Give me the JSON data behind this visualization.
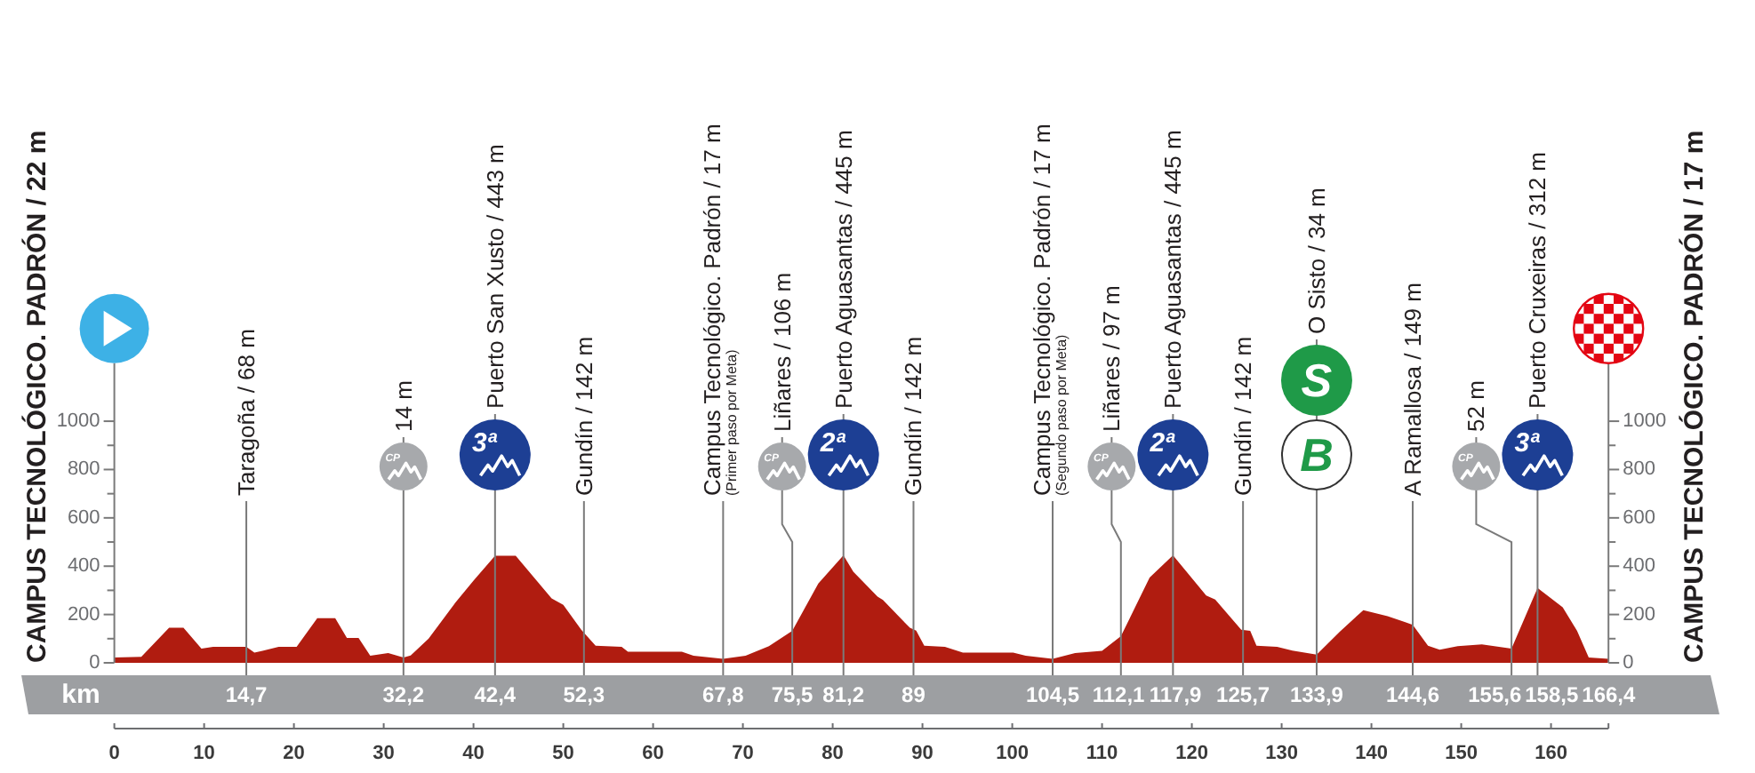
{
  "chart_data": {
    "type": "area",
    "ylabel": "CAMPUS TECNOLÓGICO. PADRÓN / 22 m",
    "y2label": "CAMPUS TECNOLÓGICO. PADRÓN / 17 m",
    "x2label": "km",
    "x": [
      0,
      3,
      6.1,
      7.7,
      9.7,
      11,
      14.7,
      15.6,
      16.5,
      18.3,
      20.3,
      22.6,
      24.6,
      25.9,
      27.2,
      28.5,
      30.5,
      32.2,
      33,
      35,
      38,
      40,
      42.4,
      44.7,
      48.7,
      50,
      52,
      53.6,
      56.5,
      57.2,
      63.2,
      64.5,
      67.8,
      70.3,
      72.9,
      75.5,
      78.4,
      81.2,
      82.3,
      85,
      85.6,
      88.6,
      89.3,
      90.2,
      92.5,
      94.5,
      100.1,
      101.5,
      104.5,
      107,
      110,
      112.1,
      115.3,
      117.9,
      121.6,
      122.6,
      125.5,
      126.5,
      127.2,
      129.5,
      131.2,
      133.9,
      136.5,
      139.1,
      141.8,
      143.7,
      144.6,
      146.3,
      147.6,
      149.6,
      152.3,
      155.6,
      158.5,
      161.3,
      162.9,
      164.2,
      166.4
    ],
    "values": [
      22,
      25,
      145,
      145,
      59,
      66,
      66,
      42,
      50,
      66,
      66,
      185,
      185,
      103,
      103,
      29,
      40,
      22,
      30,
      100,
      250,
      340,
      443,
      443,
      267,
      240,
      137,
      71,
      66,
      46,
      46,
      29,
      17,
      29,
      69,
      132,
      328,
      445,
      377,
      274,
      260,
      145,
      133,
      71,
      66,
      42,
      42,
      29,
      17,
      40,
      50,
      110,
      353,
      445,
      279,
      262,
      137,
      132,
      71,
      66,
      51,
      34,
      130,
      218,
      193,
      169,
      157,
      71,
      54,
      69,
      76,
      59,
      310,
      230,
      132,
      22,
      17
    ],
    "color": "#b01c10",
    "xlim": [
      0,
      166.4
    ],
    "xticks": [
      0,
      10,
      20,
      30,
      40,
      50,
      60,
      70,
      80,
      90,
      100,
      110,
      120,
      130,
      140,
      150,
      160,
      {
        "value": 166.4,
        "label": null
      }
    ],
    "x2lim": [
      0,
      166.4
    ],
    "x2ticks": [
      {
        "value": 14.7,
        "label": "14,7"
      },
      {
        "value": 32.2,
        "label": "32,2"
      },
      {
        "value": 42.4,
        "label": "42,4"
      },
      {
        "value": 52.3,
        "label": "52,3"
      },
      {
        "value": 67.8,
        "label": "67,8"
      },
      {
        "value": 75.5,
        "label": "75,5"
      },
      {
        "value": 81.2,
        "label": "81,2"
      },
      89,
      {
        "value": 104.5,
        "label": "104,5"
      },
      {
        "value": 112.1,
        "label": "112,1"
      },
      {
        "value": 117.9,
        "label": "117,9"
      },
      {
        "value": 125.7,
        "label": "125,7"
      },
      {
        "value": 133.9,
        "label": "133,9"
      },
      {
        "value": 144.6,
        "label": "144,6"
      },
      {
        "value": 166.4,
        "label": "166,4"
      }
    ],
    "ylim": [
      0,
      1240
    ],
    "yticks": [
      0,
      {
        "value": 100,
        "label": null
      },
      200,
      {
        "value": 300,
        "label": null
      },
      400,
      {
        "value": 500,
        "label": null
      },
      600,
      {
        "value": 700,
        "label": null
      },
      800,
      {
        "value": 900,
        "label": null
      },
      1000
    ],
    "y2lim": [
      0,
      1240
    ],
    "y2ticks": [
      0,
      {
        "value": 100,
        "label": null
      },
      200,
      {
        "value": 300,
        "label": null
      },
      400,
      {
        "value": 500,
        "label": null
      },
      600,
      {
        "value": 700,
        "label": null
      },
      800,
      {
        "value": 900,
        "label": null
      },
      1000
    ],
    "ref_lines": [
      {
        "axis": "x",
        "value": 14.7,
        "label": "Taragoña / 68 m"
      },
      {
        "axis": "x",
        "value": 32.2,
        "label": "14 m"
      },
      {
        "axis": "x",
        "value": 42.4,
        "label": "Puerto San Xusto / 443 m"
      },
      {
        "axis": "x",
        "value": 52.3,
        "label": "Gundín / 142 m"
      },
      {
        "axis": "x",
        "value": 67.8,
        "label": "Campus Tecnológico. Padrón / 17 m\n(Primer paso por Meta)"
      },
      {
        "axis": "x",
        "value": 75.5,
        "label": "Liñares / 106 m"
      },
      {
        "axis": "x",
        "value": 81.2,
        "label": "Puerto Aguasantas / 445 m"
      },
      {
        "axis": "x",
        "value": 89,
        "label": "Gundín / 142 m"
      },
      {
        "axis": "x",
        "value": 104.5,
        "label": "Campus Tecnológico. Padrón / 17 m\n(Segundo paso por Meta)"
      },
      {
        "axis": "x",
        "value": 112.1,
        "label": "Liñares / 97 m"
      },
      {
        "axis": "x",
        "value": 117.9,
        "label": "Puerto Aguasantas / 445 m"
      },
      {
        "axis": "x",
        "value": 125.7,
        "label": "Gundín / 142 m"
      },
      {
        "axis": "x",
        "value": 133.9,
        "label": "O Sisto / 34 m"
      },
      {
        "axis": "x",
        "value": 144.6,
        "label": "A Ramallosa / 149 m"
      },
      {
        "axis": "x",
        "value": 155.6,
        "label": "52 m"
      },
      {
        "axis": "x",
        "value": 158.5,
        "label": "Puerto Cruxeiras / 312 m"
      }
    ],
    "annotations": [
      "CP",
      "3ª",
      "CP",
      "2ª",
      "CP",
      "2ª",
      "S",
      "B",
      "CP",
      "3ª",
      "155,6",
      "158,5"
    ]
  }
}
